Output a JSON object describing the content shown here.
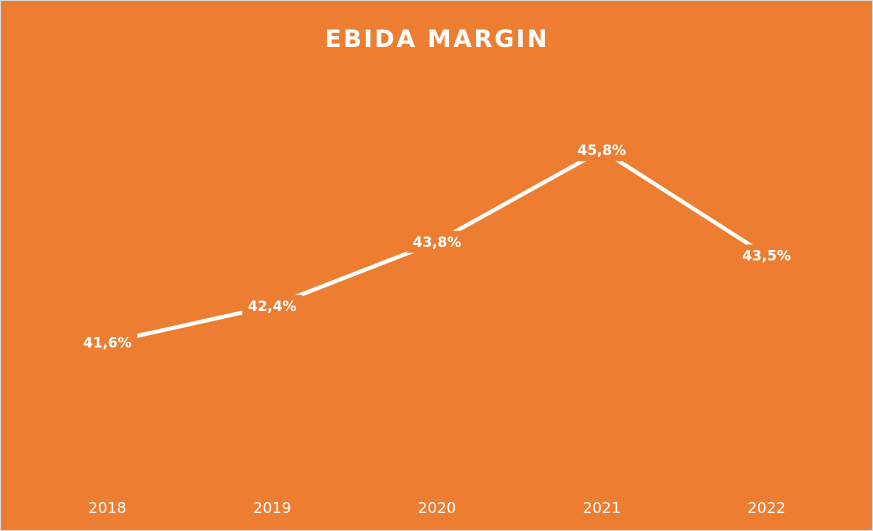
{
  "colors": {
    "background": "#ED7D31",
    "line": "#ffffff",
    "dropline": "#fbe5d6"
  },
  "chart_data": {
    "type": "line",
    "title": "EBIDA MARGIN",
    "xlabel": "",
    "ylabel": "",
    "categories": [
      "2018",
      "2019",
      "2020",
      "2021",
      "2022"
    ],
    "values": [
      41.6,
      42.4,
      43.8,
      45.8,
      43.5
    ],
    "data_labels": [
      "41,6%",
      "42,4%",
      "43,8%",
      "45,8%",
      "43,5%"
    ],
    "drop_lines": true,
    "grid": false,
    "legend": "none"
  }
}
